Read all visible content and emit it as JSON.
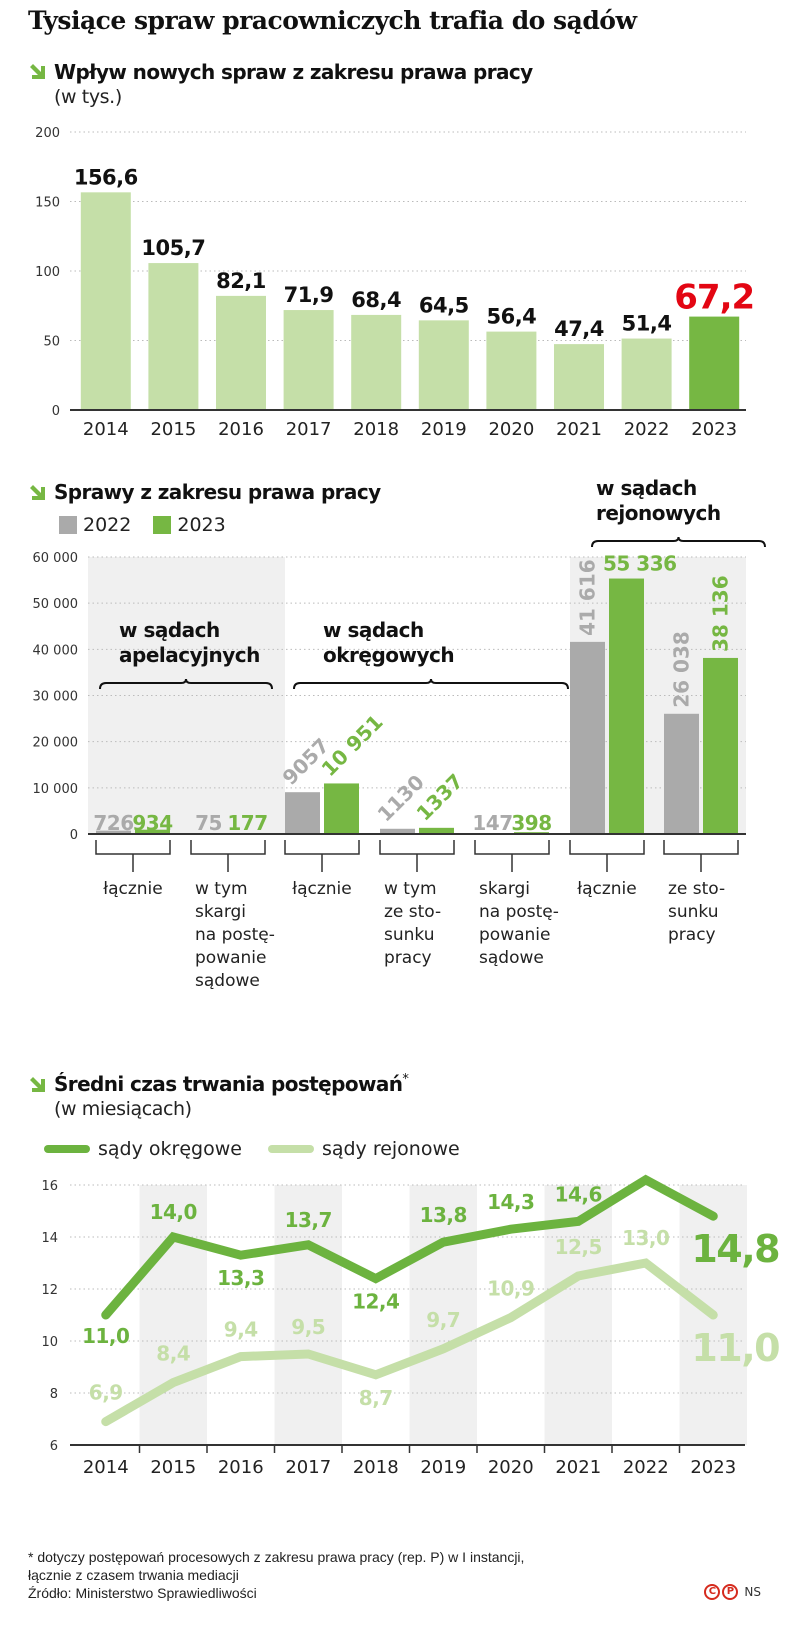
{
  "title": "Tysiące spraw pracowniczych trafia do sądów",
  "colors": {
    "light_green": "#c5dfa8",
    "dark_green": "#76b743",
    "gray": "#aaaaaa",
    "red_highlight": "#e30613",
    "band": "#f0f0f0",
    "line_light": "#c5dfa8",
    "line_dark": "#6cb33f"
  },
  "section1": {
    "title": "Wpływ nowych spraw z zakresu prawa pracy",
    "subtitle": "(w tys.)"
  },
  "section2": {
    "title": "Sprawy z zakresu prawa pracy",
    "legend": [
      {
        "label": "2022",
        "color": "#aaaaaa"
      },
      {
        "label": "2023",
        "color": "#76b743"
      }
    ],
    "group_labels": [
      {
        "line1": "w sądach",
        "line2": "apelacyjnych"
      },
      {
        "line1": "w sądach",
        "line2": "okręgowych"
      },
      {
        "line1": "w sądach",
        "line2": "rejonowych"
      }
    ],
    "category_labels": [
      [
        "łącznie"
      ],
      [
        "w tym",
        "skargi",
        "na postę-",
        "powanie",
        "sądowe"
      ],
      [
        "łącznie"
      ],
      [
        "w tym",
        "ze sto-",
        "sunku",
        "pracy"
      ],
      [
        "skargi",
        "na postę-",
        "powanie",
        "sądowe"
      ],
      [
        "łącznie"
      ],
      [
        "ze sto-",
        "sunku",
        "pracy"
      ]
    ]
  },
  "section3": {
    "title": "Średni czas trwania postępowań",
    "title_mark": "*",
    "subtitle": "(w miesiącach)",
    "legend": [
      {
        "label": "sądy okręgowe",
        "color": "#6cb33f"
      },
      {
        "label": "sądy rejonowe",
        "color": "#c5dfa8"
      }
    ]
  },
  "footer": {
    "note_line1": "* dotyczy postępowań procesowych z zakresu prawa pracy (rep. P) w I instancji,",
    "note_line2": "łącznie z czasem trwania mediacji",
    "source": "Źródło: Ministerstwo Sprawiedliwości",
    "credit_c": "C",
    "credit_p": "P",
    "credit_initials": "NS"
  },
  "chart_data": [
    {
      "type": "bar",
      "title": "Wpływ nowych spraw z zakresu prawa pracy",
      "subtitle": "(w tys.)",
      "categories": [
        "2014",
        "2015",
        "2016",
        "2017",
        "2018",
        "2019",
        "2020",
        "2021",
        "2022",
        "2023"
      ],
      "values": [
        156.6,
        105.7,
        82.1,
        71.9,
        68.4,
        64.5,
        56.4,
        47.4,
        51.4,
        67.2
      ],
      "labels": [
        "156,6",
        "105,7",
        "82,1",
        "71,9",
        "68,4",
        "64,5",
        "56,4",
        "47,4",
        "51,4",
        "67,2"
      ],
      "highlight_index": 9,
      "yticks": [
        0,
        50,
        100,
        150,
        200
      ],
      "ylim": [
        0,
        200
      ],
      "grid": "dotted",
      "xlabel": "",
      "ylabel": ""
    },
    {
      "type": "bar",
      "title": "Sprawy z zakresu prawa pracy",
      "categories": [
        "apelacyjne: łącznie",
        "apelacyjne: w tym skargi na postępowanie sądowe",
        "okręgowe: łącznie",
        "okręgowe: w tym ze stosunku pracy",
        "okręgowe: skargi na postępowanie sądowe",
        "rejonowe: łącznie",
        "rejonowe: ze stosunku pracy"
      ],
      "series": [
        {
          "name": "2022",
          "values": [
            726,
            75,
            9057,
            1130,
            147,
            41616,
            26038
          ],
          "labels": [
            "726",
            "75",
            "9057",
            "1130",
            "147",
            "41 616",
            "26 038"
          ]
        },
        {
          "name": "2023",
          "values": [
            934,
            177,
            10951,
            1337,
            398,
            55336,
            38136
          ],
          "labels": [
            "934",
            "177",
            "10 951",
            "1337",
            "398",
            "55 336",
            "38 136"
          ]
        }
      ],
      "yticks": [
        0,
        10000,
        20000,
        30000,
        40000,
        50000,
        60000
      ],
      "ytick_labels": [
        "0",
        "10 000",
        "20 000",
        "30 000",
        "40 000",
        "50 000",
        "60 000"
      ],
      "ylim": [
        0,
        60000
      ],
      "legend_position": "top-left",
      "grid": "dotted"
    },
    {
      "type": "line",
      "title": "Średni czas trwania postępowań*",
      "subtitle": "(w miesiącach)",
      "x": [
        "2014",
        "2015",
        "2016",
        "2017",
        "2018",
        "2019",
        "2020",
        "2021",
        "2022",
        "2023"
      ],
      "series": [
        {
          "name": "sądy okręgowe",
          "values": [
            11.0,
            14.0,
            13.3,
            13.7,
            12.4,
            13.8,
            14.3,
            14.6,
            16.2,
            14.8
          ],
          "labels": [
            "11,0",
            "14,0",
            "13,3",
            "13,7",
            "12,4",
            "13,8",
            "14,3",
            "14,6",
            "16,2",
            "14,8"
          ]
        },
        {
          "name": "sądy rejonowe",
          "values": [
            6.9,
            8.4,
            9.4,
            9.5,
            8.7,
            9.7,
            10.9,
            12.5,
            13.0,
            11.0
          ],
          "labels": [
            "6,9",
            "8,4",
            "9,4",
            "9,5",
            "8,7",
            "9,7",
            "10,9",
            "12,5",
            "13,0",
            "11,0"
          ]
        }
      ],
      "yticks": [
        6,
        8,
        10,
        12,
        14,
        16
      ],
      "ylim": [
        6,
        16
      ],
      "legend_position": "top-left",
      "grid": "dotted"
    }
  ]
}
